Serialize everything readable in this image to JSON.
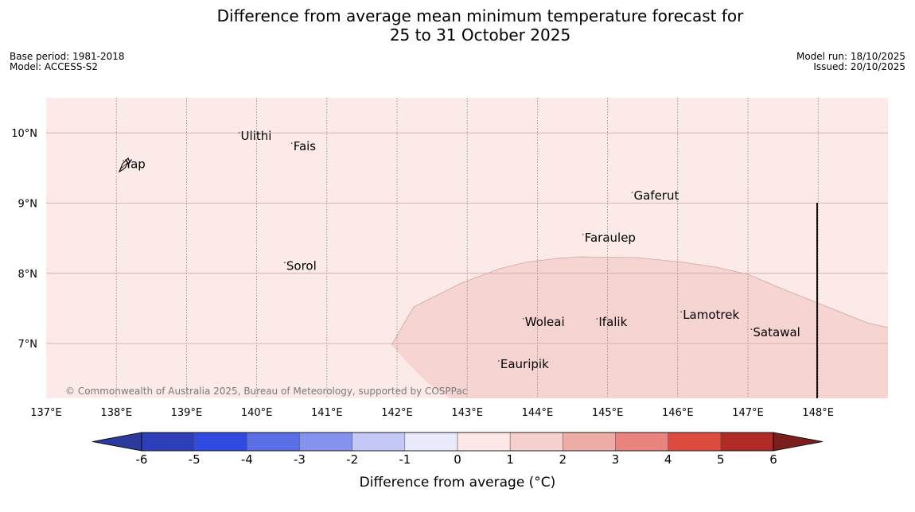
{
  "title": {
    "line1": "Difference from average mean minimum temperature forecast for",
    "line2": "25 to 31 October 2025"
  },
  "meta": {
    "base_period": "Base period: 1981-2018",
    "model": "Model: ACCESS-S2",
    "model_run": "Model run: 18/10/2025",
    "issued": "Issued: 20/10/2025"
  },
  "map": {
    "copyright": "© Commonwealth of Australia 2025, Bureau of Meteorology, supported by COSPPac",
    "lon_labels": [
      "137°E",
      "138°E",
      "139°E",
      "140°E",
      "141°E",
      "142°E",
      "143°E",
      "144°E",
      "145°E",
      "146°E",
      "147°E",
      "148°E"
    ],
    "lat_labels": [
      "10°N",
      "9°N",
      "8°N",
      "7°N"
    ],
    "places": [
      {
        "name": "Ulithi",
        "lon": 139.75,
        "lat": 9.9
      },
      {
        "name": "Fais",
        "lon": 140.5,
        "lat": 9.75
      },
      {
        "name": "Yap",
        "lon": 138.1,
        "lat": 9.5
      },
      {
        "name": "Gaferut",
        "lon": 145.35,
        "lat": 9.05
      },
      {
        "name": "Faraulep",
        "lon": 144.65,
        "lat": 8.45
      },
      {
        "name": "Sorol",
        "lon": 140.4,
        "lat": 8.05
      },
      {
        "name": "Lamotrek",
        "lon": 146.05,
        "lat": 7.35
      },
      {
        "name": "Woleai",
        "lon": 143.8,
        "lat": 7.25
      },
      {
        "name": "Ifalik",
        "lon": 144.85,
        "lat": 7.25
      },
      {
        "name": "Satawal",
        "lon": 147.05,
        "lat": 7.1
      },
      {
        "name": "Eauripik",
        "lon": 143.45,
        "lat": 6.65
      }
    ],
    "background_anomaly": "0 to 1",
    "region_anomaly": "1 to 2",
    "fill_colors": {
      "c0to1": "#fbeae8",
      "c1to2": "#f5d4d1"
    }
  },
  "colorbar": {
    "title": "Difference from average (°C)",
    "ticks": [
      "-6",
      "-5",
      "-4",
      "-3",
      "-2",
      "-1",
      "0",
      "1",
      "2",
      "3",
      "4",
      "5",
      "6"
    ],
    "colors": [
      "#2b3a9c",
      "#2d3fb8",
      "#2f4be0",
      "#5a6fe6",
      "#8593ee",
      "#c3c8f6",
      "#e9ebfd",
      "#fde8e7",
      "#f6d0cd",
      "#eeaca6",
      "#e8847d",
      "#dd4b3f",
      "#ae2b26",
      "#7a1f1c"
    ]
  }
}
